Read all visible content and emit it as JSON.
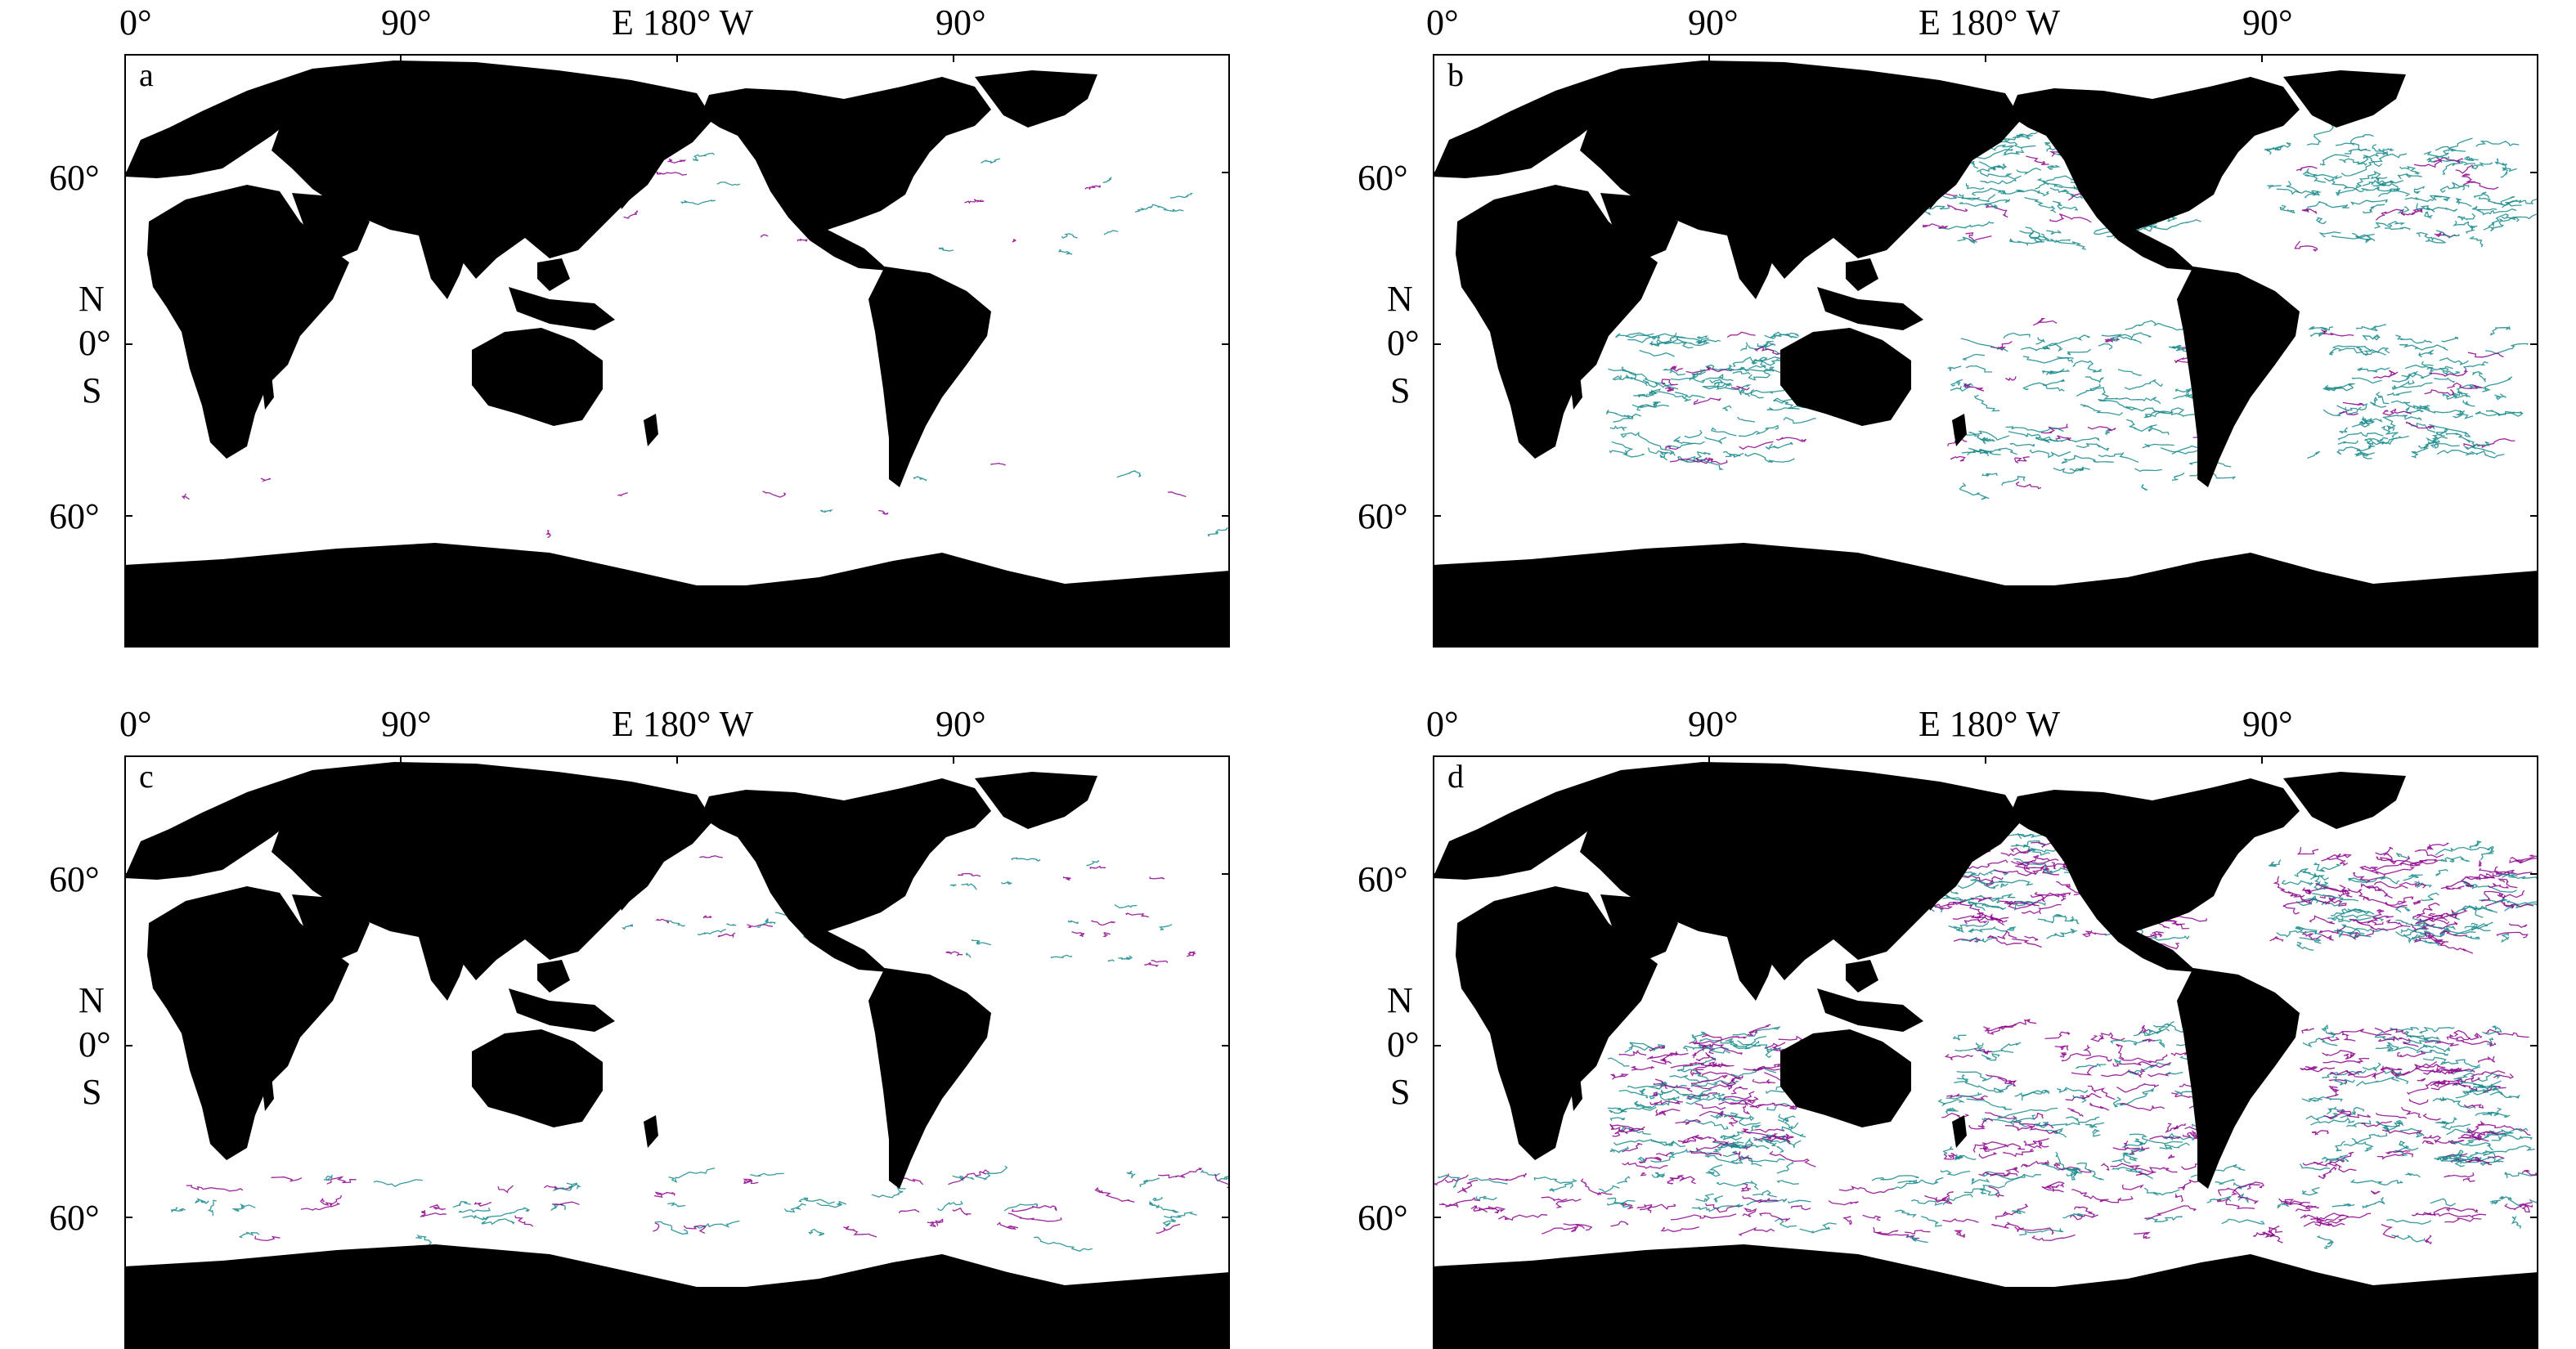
{
  "figure": {
    "colors": {
      "land": "#000000",
      "ocean": "#ffffff",
      "track_purple": "#8b008b",
      "track_teal": "#16888a"
    },
    "top_axis_labels": [
      "0°",
      "90°",
      "E 180° W",
      "90°"
    ],
    "left_axis_labels": {
      "lat_north": "60°",
      "north": "N",
      "equator": "0°",
      "south": "S",
      "lat_south": "60°"
    },
    "panels": [
      {
        "letter": "a",
        "density": 0.25,
        "purple_share": 0.45,
        "regions": [
          "southern-ocean-sparse",
          "north-pacific-sparse",
          "north-atlantic-sparse"
        ]
      },
      {
        "letter": "b",
        "density": 0.65,
        "purple_share": 0.15,
        "regions": [
          "north-pacific",
          "north-atlantic",
          "south-pacific",
          "south-indian",
          "south-atlantic"
        ]
      },
      {
        "letter": "c",
        "density": 0.5,
        "purple_share": 0.5,
        "regions": [
          "southern-ocean",
          "north-pacific-sparse",
          "north-atlantic-sparse"
        ]
      },
      {
        "letter": "d",
        "density": 1.0,
        "purple_share": 0.55,
        "regions": [
          "north-pacific",
          "north-atlantic",
          "south-pacific",
          "south-indian",
          "south-atlantic",
          "southern-ocean"
        ]
      }
    ]
  }
}
